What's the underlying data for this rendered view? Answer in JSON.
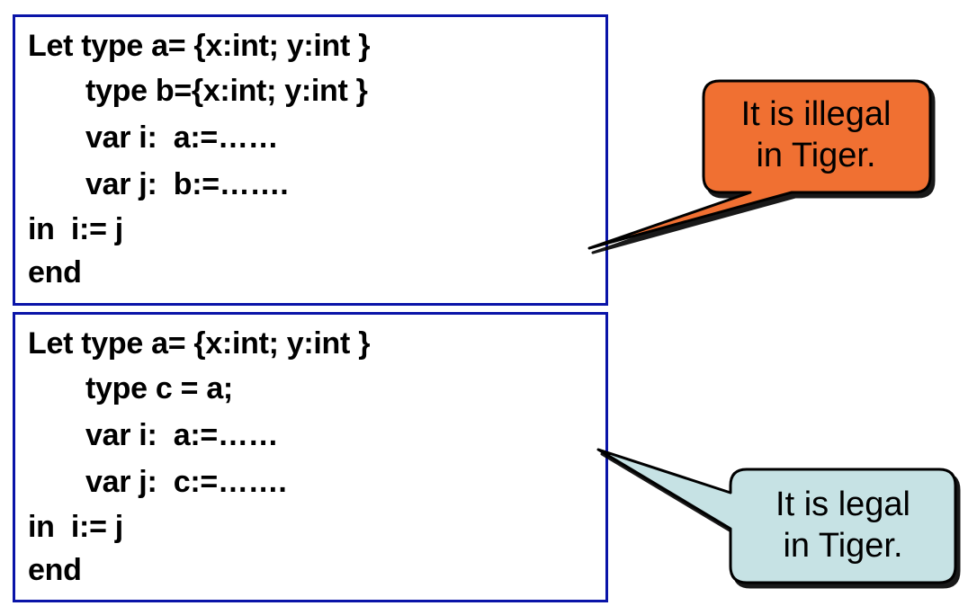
{
  "code_block_1": {
    "lines": [
      "Let type a= {x:int; y:int }",
      "type b={x:int; y:int }",
      "var i:  a:=……",
      "var j:  b:=…….",
      "in  i:= j",
      "end"
    ]
  },
  "code_block_2": {
    "lines": [
      "Let type a= {x:int; y:int }",
      "type c = a;",
      "var i:  a:=……",
      "var j:  c:=…….",
      "in  i:= j",
      "end"
    ]
  },
  "callout_illegal": {
    "line1": "It is illegal",
    "line2": "in Tiger.",
    "fill": "#f07030"
  },
  "callout_legal": {
    "line1": "It is legal",
    "line2": "in Tiger.",
    "fill": "#c6e2e4"
  },
  "colors": {
    "box_border": "#0a14a8"
  }
}
